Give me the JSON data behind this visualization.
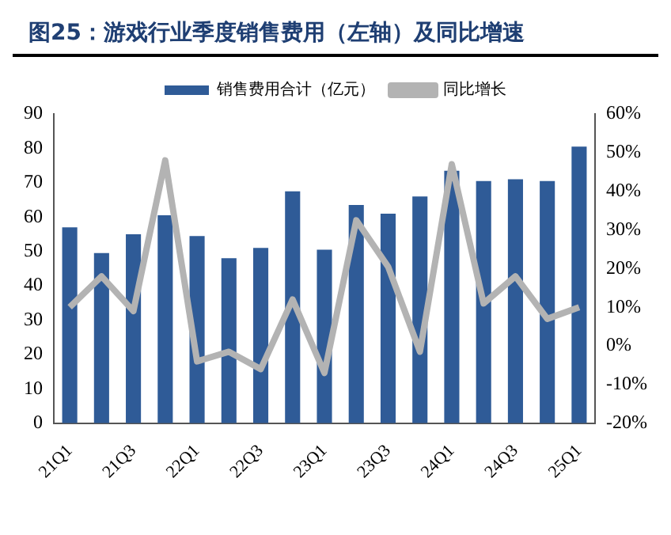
{
  "chart_data": {
    "type": "bar",
    "title": "图25：游戏行业季度销售费用（左轴）及同比增速",
    "categories": [
      "21Q1",
      null,
      "21Q3",
      null,
      "22Q1",
      null,
      "22Q3",
      null,
      "23Q1",
      null,
      "23Q3",
      null,
      "24Q1",
      null,
      "24Q3",
      null,
      "25Q1"
    ],
    "series": [
      {
        "name": "销售费用合计（亿元）",
        "color": "#2f5b97",
        "values": [
          57,
          49.5,
          55,
          60.5,
          54.5,
          48,
          51,
          67.5,
          50.5,
          63.5,
          61,
          66,
          73.5,
          70.5,
          71,
          70.5,
          80.5
        ]
      },
      {
        "name": "同比增长",
        "type": "line",
        "axis": "y2",
        "color": "#b3b3b3",
        "values": [
          10,
          18,
          9,
          48,
          -4,
          -1.5,
          -6,
          12,
          -7,
          32.5,
          20.5,
          -1.5,
          47,
          11,
          18,
          7,
          10
        ]
      }
    ],
    "ylim": [
      0,
      90
    ],
    "yticks": [
      0,
      10,
      20,
      30,
      40,
      50,
      60,
      70,
      80,
      90
    ],
    "y2lim": [
      -20,
      60
    ],
    "y2ticks": [
      {
        "value": -20,
        "label": "-20%"
      },
      {
        "value": -10,
        "label": "-10%"
      },
      {
        "value": 0,
        "label": "0%"
      },
      {
        "value": 10,
        "label": "10%"
      },
      {
        "value": 20,
        "label": "20%"
      },
      {
        "value": 30,
        "label": "30%"
      },
      {
        "value": 40,
        "label": "40%"
      },
      {
        "value": 50,
        "label": "50%"
      },
      {
        "value": 60,
        "label": "60%"
      }
    ],
    "legend": "top",
    "grid": false,
    "marker": "none",
    "line_style": "solid"
  }
}
